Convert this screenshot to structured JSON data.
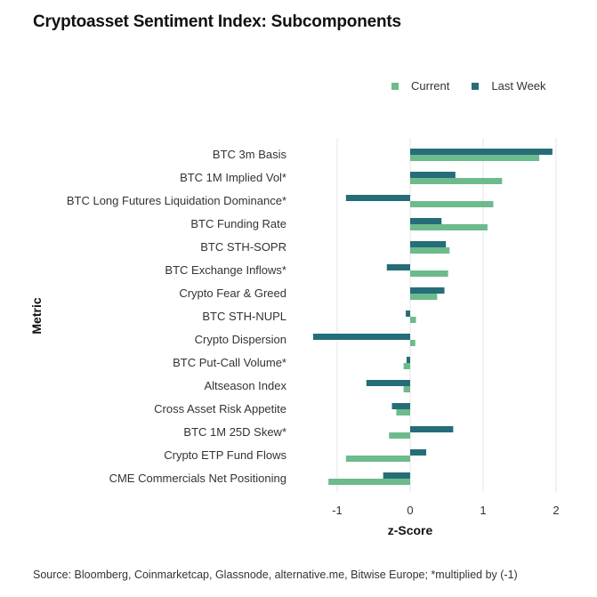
{
  "title": "Cryptoasset Sentiment Index: Subcomponents",
  "source": "Source: Bloomberg, Coinmarketcap, Glassnode, alternative.me, Bitwise Europe; *multiplied by (-1)",
  "colors": {
    "current": "#6dbb8c",
    "last_week": "#256e78",
    "grid": "#e6e6e6"
  },
  "chart_data": {
    "type": "bar",
    "orientation": "horizontal",
    "xlabel": "z-Score",
    "ylabel": "Metric",
    "xlim": [
      -1.3,
      2.05
    ],
    "xticks": [
      -1,
      0,
      1,
      2
    ],
    "xtick_labels": [
      "-1",
      "0",
      "1",
      "2"
    ],
    "legend_position": "top-right",
    "grid": "vertical",
    "categories": [
      "BTC 3m Basis",
      "BTC 1M Implied Vol*",
      "BTC Long Futures Liquidation Dominance*",
      "BTC Funding Rate",
      "BTC STH-SOPR",
      "BTC Exchange Inflows*",
      "Crypto Fear & Greed",
      "BTC STH-NUPL",
      "Crypto Dispersion",
      "BTC Put-Call Volume*",
      "Altseason Index",
      "Cross Asset Risk Appetite",
      "BTC 1M 25D Skew*",
      "Crypto ETP Fund Flows",
      "CME Commercials Net Positioning"
    ],
    "series": [
      {
        "name": "Current",
        "values": [
          1.77,
          1.26,
          1.14,
          1.06,
          0.54,
          0.52,
          0.37,
          0.08,
          0.07,
          -0.09,
          -0.09,
          -0.19,
          -0.29,
          -0.88,
          -1.12
        ]
      },
      {
        "name": "Last Week",
        "values": [
          1.95,
          0.62,
          -0.88,
          0.43,
          0.49,
          -0.32,
          0.47,
          -0.06,
          -1.33,
          -0.05,
          -0.6,
          -0.25,
          0.59,
          0.22,
          -0.37
        ]
      }
    ]
  }
}
